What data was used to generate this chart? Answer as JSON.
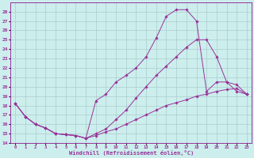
{
  "xlabel": "Windchill (Refroidissement éolien,°C)",
  "bg_color": "#cceeed",
  "line_color": "#993399",
  "grid_color": "#aacccc",
  "xlim": [
    -0.5,
    23.5
  ],
  "ylim": [
    14,
    29
  ],
  "xticks": [
    0,
    1,
    2,
    3,
    4,
    5,
    6,
    7,
    8,
    9,
    10,
    11,
    12,
    13,
    14,
    15,
    16,
    17,
    18,
    19,
    20,
    21,
    22,
    23
  ],
  "yticks": [
    14,
    15,
    16,
    17,
    18,
    19,
    20,
    21,
    22,
    23,
    24,
    25,
    26,
    27,
    28
  ],
  "curve1_x": [
    0,
    1,
    2,
    3,
    4,
    5,
    6,
    7,
    8,
    9,
    10,
    11,
    12,
    13,
    14,
    15,
    16,
    17,
    18,
    19,
    20,
    21,
    22,
    23
  ],
  "curve1_y": [
    18.2,
    16.8,
    16.0,
    15.6,
    15.0,
    14.9,
    14.8,
    14.5,
    15.0,
    15.5,
    16.5,
    17.5,
    18.8,
    20.0,
    21.2,
    22.2,
    23.2,
    24.2,
    25.0,
    25.0,
    23.2,
    20.5,
    20.2,
    19.2
  ],
  "curve2_x": [
    0,
    1,
    2,
    3,
    4,
    5,
    6,
    7,
    8,
    9,
    10,
    11,
    12,
    13,
    14,
    15,
    16,
    17,
    18,
    19,
    20,
    21,
    22,
    23
  ],
  "curve2_y": [
    18.2,
    16.8,
    16.0,
    15.6,
    15.0,
    14.9,
    14.8,
    14.5,
    18.5,
    19.2,
    20.5,
    21.2,
    22.0,
    23.2,
    25.2,
    27.5,
    28.2,
    28.2,
    27.0,
    19.5,
    20.5,
    20.5,
    19.5,
    19.2
  ],
  "curve3_x": [
    0,
    1,
    2,
    3,
    4,
    5,
    6,
    7,
    8,
    9,
    10,
    11,
    12,
    13,
    14,
    15,
    16,
    17,
    18,
    19,
    20,
    21,
    22,
    23
  ],
  "curve3_y": [
    18.2,
    16.8,
    16.0,
    15.6,
    15.0,
    14.9,
    14.8,
    14.5,
    14.8,
    15.2,
    15.5,
    16.0,
    16.5,
    17.0,
    17.5,
    18.0,
    18.3,
    18.6,
    19.0,
    19.2,
    19.5,
    19.7,
    19.8,
    19.2
  ]
}
